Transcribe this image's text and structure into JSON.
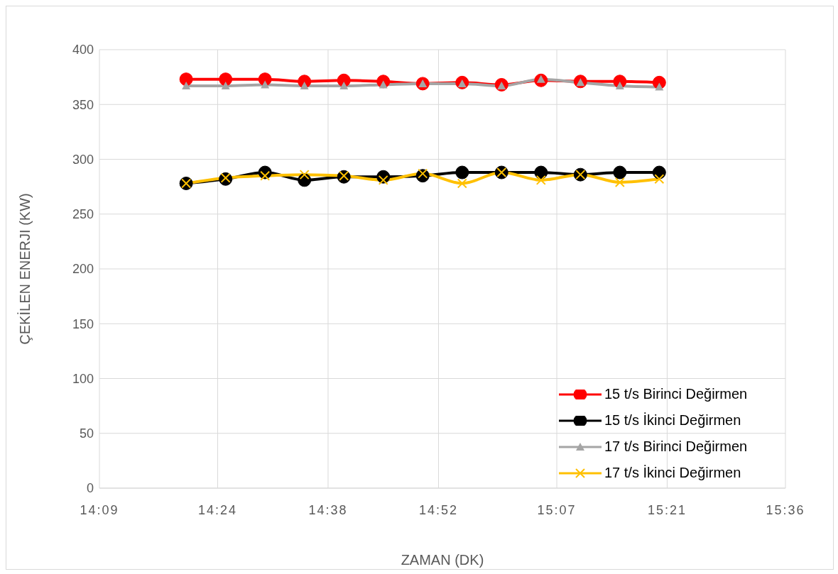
{
  "chart_data": {
    "type": "line",
    "xlabel": "ZAMAN (DK)",
    "ylabel": "ÇEKİLEN ENERJI (KW)",
    "x": [
      14.3333,
      14.4167,
      14.5,
      14.5833,
      14.6667,
      14.75,
      14.8333,
      14.9167,
      15.0,
      15.0833,
      15.1667,
      15.25,
      15.3333
    ],
    "series": [
      {
        "name": "15 t/s Birinci Değirmen",
        "color": "#ff0000",
        "marker": "circle",
        "values": [
          373,
          373,
          373,
          371,
          372,
          371,
          369,
          370,
          368,
          372,
          371,
          371,
          370
        ]
      },
      {
        "name": "15 t/s İkinci Değirmen",
        "color": "#000000",
        "marker": "circle",
        "values": [
          278,
          282,
          288,
          281,
          284,
          284,
          285,
          288,
          288,
          288,
          286,
          288,
          288
        ]
      },
      {
        "name": "17 t/s Birinci Değirmen",
        "color": "#a5a5a5",
        "marker": "triangle",
        "values": [
          367,
          367,
          368,
          367,
          367,
          368,
          369,
          369,
          367,
          373,
          370,
          367,
          366
        ]
      },
      {
        "name": "17 t/s İkinci Değirmen",
        "color": "#ffc000",
        "marker": "cross",
        "values": [
          278,
          283,
          285,
          286,
          285,
          281,
          287,
          278,
          288,
          281,
          286,
          279,
          282
        ]
      }
    ],
    "xlim": [
      14.15,
      15.6
    ],
    "xticks": [
      {
        "value": 14.15,
        "label": "14:09"
      },
      {
        "value": 14.4,
        "label": "14:24"
      },
      {
        "value": 14.6333,
        "label": "14:38"
      },
      {
        "value": 14.8667,
        "label": "14:52"
      },
      {
        "value": 15.1167,
        "label": "15:07"
      },
      {
        "value": 15.35,
        "label": "15:21"
      },
      {
        "value": 15.6,
        "label": "15:36"
      }
    ],
    "ylim": [
      0,
      400
    ],
    "yticks": [
      0,
      50,
      100,
      150,
      200,
      250,
      300,
      350,
      400
    ],
    "grid": true,
    "legend": "bottom right"
  }
}
